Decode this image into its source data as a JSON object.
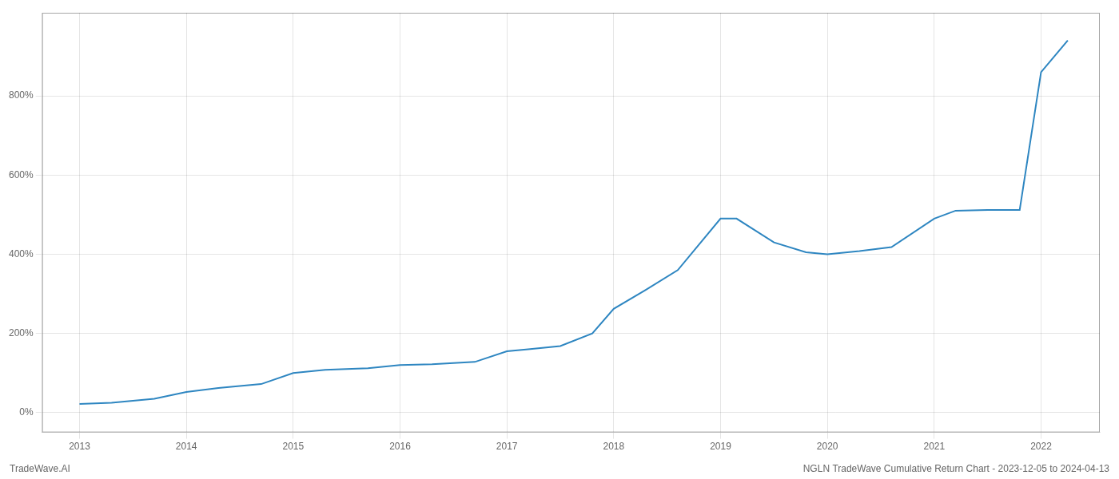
{
  "chart_data": {
    "type": "line",
    "x": [
      2013.0,
      2013.3,
      2013.7,
      2014.0,
      2014.3,
      2014.7,
      2015.0,
      2015.3,
      2015.7,
      2016.0,
      2016.3,
      2016.7,
      2017.0,
      2017.2,
      2017.5,
      2017.8,
      2018.0,
      2018.3,
      2018.6,
      2019.0,
      2019.15,
      2019.5,
      2019.8,
      2020.0,
      2020.3,
      2020.6,
      2021.0,
      2021.2,
      2021.5,
      2021.8,
      2022.0,
      2022.25
    ],
    "values": [
      22,
      25,
      35,
      52,
      62,
      72,
      100,
      108,
      112,
      120,
      122,
      128,
      155,
      160,
      168,
      200,
      262,
      310,
      360,
      490,
      490,
      430,
      405,
      400,
      408,
      418,
      490,
      510,
      512,
      512,
      860,
      940
    ],
    "color": "#2e86c1",
    "xlim": [
      2012.65,
      2022.55
    ],
    "ylim": [
      -50,
      1010
    ],
    "xticks": [
      2013,
      2014,
      2015,
      2016,
      2017,
      2018,
      2019,
      2020,
      2021,
      2022
    ],
    "yticks": [
      {
        "value": 0,
        "label": "0%"
      },
      {
        "value": 200,
        "label": "200%"
      },
      {
        "value": 400,
        "label": "400%"
      },
      {
        "value": 600,
        "label": "600%"
      },
      {
        "value": 800,
        "label": "800%"
      }
    ],
    "grid": true,
    "annotations": [
      "TradeWave.AI",
      "NGLN TradeWave Cumulative Return Chart - 2023-12-05 to 2024-04-13"
    ]
  }
}
